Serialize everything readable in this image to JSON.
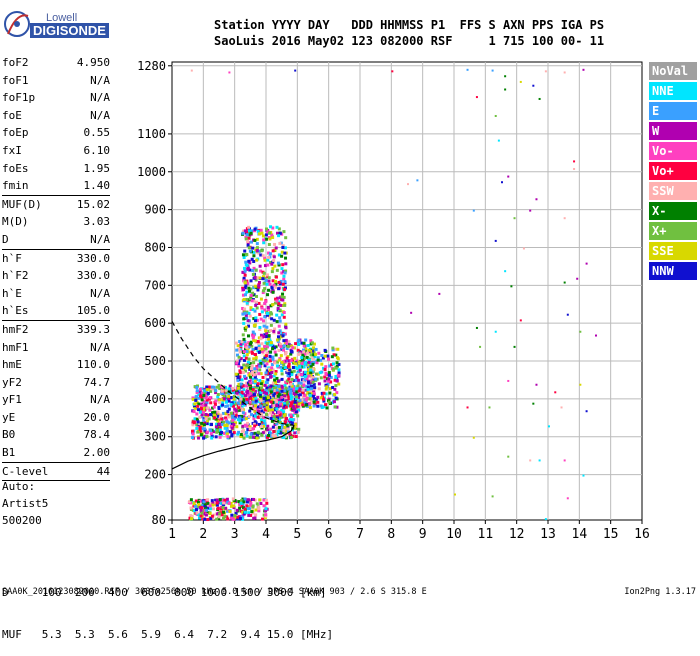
{
  "logo": {
    "top": "Lowell",
    "bottom": "DIGISONDE"
  },
  "header": {
    "line1": "Station YYYY DAY   DDD HHMMSS P1  FFS S AXN PPS IGA PS",
    "line2": "SaoLuis 2016 May02 123 082000 RSF     1 715 100 00- 11"
  },
  "params": [
    [
      [
        "foF2",
        "4.950"
      ],
      [
        "foF1",
        "N/A"
      ],
      [
        "foF1p",
        "N/A"
      ],
      [
        "foE",
        "N/A"
      ],
      [
        "foEp",
        "0.55"
      ],
      [
        "fxI",
        "6.10"
      ],
      [
        "foEs",
        "1.95"
      ],
      [
        "fmin",
        "1.40"
      ]
    ],
    [
      [
        "MUF(D)",
        "15.02"
      ],
      [
        "M(D)",
        "3.03"
      ],
      [
        "D",
        "N/A"
      ]
    ],
    [
      [
        "h`F",
        "330.0"
      ],
      [
        "h`F2",
        "330.0"
      ],
      [
        "h`E",
        "N/A"
      ],
      [
        "h`Es",
        "105.0"
      ]
    ],
    [
      [
        "hmF2",
        "339.3"
      ],
      [
        "hmF1",
        "N/A"
      ],
      [
        "hmE",
        "110.0"
      ],
      [
        "yF2",
        "74.7"
      ],
      [
        "yF1",
        "N/A"
      ],
      [
        "yE",
        "20.0"
      ],
      [
        "B0",
        "78.4"
      ],
      [
        "B1",
        "2.00"
      ]
    ],
    [
      [
        "C-level",
        "44"
      ]
    ]
  ],
  "auto": {
    "l1": "Auto:",
    "l2": "Artist5",
    "l3": "500200"
  },
  "legend": [
    {
      "label": "NoVal",
      "color": "#a0a0a0"
    },
    {
      "label": "NNE",
      "color": "#00e5ff"
    },
    {
      "label": "E",
      "color": "#3aa0ff"
    },
    {
      "label": "W",
      "color": "#b000b0"
    },
    {
      "label": "Vo-",
      "color": "#ff40c0"
    },
    {
      "label": "Vo+",
      "color": "#ff0040"
    },
    {
      "label": "SSW",
      "color": "#ffb0b0"
    },
    {
      "label": "X-",
      "color": "#008000"
    },
    {
      "label": "X+",
      "color": "#70c040"
    },
    {
      "label": "SSE",
      "color": "#d8d800"
    },
    {
      "label": "NNW",
      "color": "#1010d0"
    }
  ],
  "dmuf": {
    "d_line": "D     100  200  400  600  800 1000 1500 3000 [km]",
    "muf_line": "MUF   5.3  5.3  5.6  5.9  6.4  7.2  9.4 15.0 [MHz]"
  },
  "footer": {
    "file": "SAA0K_2016123082000.RSF / 300fx256h 50 kHz 5.0 km / DPS-4 SAA0K 903 / 2.6 S 315.8 E",
    "version": "Ion2Png 1.3.17"
  },
  "chart_data": {
    "type": "scatter",
    "xlim": [
      1,
      16
    ],
    "ylim": [
      80,
      1290
    ],
    "x_ticks": [
      1,
      2,
      3,
      4,
      5,
      6,
      7,
      8,
      9,
      10,
      11,
      12,
      13,
      14,
      15,
      16
    ],
    "y_ticks": [
      80,
      200,
      300,
      400,
      500,
      600,
      700,
      800,
      900,
      1000,
      1100,
      1280
    ],
    "grid": true,
    "series": [
      {
        "values": [
          [
            1.6,
            1270
          ],
          [
            2.8,
            1265
          ],
          [
            4.9,
            1270
          ],
          [
            8,
            1268
          ],
          [
            10.4,
            1272
          ],
          [
            11.2,
            1270
          ],
          [
            11.6,
            1255
          ],
          [
            12.1,
            1240
          ],
          [
            12.5,
            1230
          ],
          [
            12.9,
            1268
          ],
          [
            13.5,
            1265
          ],
          [
            14.1,
            1272
          ],
          [
            10.7,
            1200
          ],
          [
            11.3,
            1150
          ],
          [
            11.6,
            1220
          ],
          [
            12.7,
            1195
          ],
          [
            11.4,
            1085
          ],
          [
            13.8,
            1030
          ],
          [
            8.5,
            970
          ],
          [
            8.8,
            980
          ],
          [
            11.5,
            975
          ],
          [
            11.7,
            990
          ],
          [
            12.6,
            930
          ],
          [
            13.8,
            1010
          ],
          [
            10.6,
            900
          ],
          [
            11.9,
            880
          ],
          [
            12.4,
            900
          ],
          [
            13.5,
            880
          ],
          [
            11.3,
            820
          ],
          [
            12.2,
            800
          ],
          [
            14.2,
            760
          ],
          [
            11.6,
            740
          ],
          [
            11.8,
            700
          ],
          [
            13.5,
            710
          ],
          [
            13.9,
            720
          ],
          [
            9.5,
            680
          ],
          [
            8.6,
            630
          ],
          [
            10.7,
            590
          ],
          [
            11.3,
            580
          ],
          [
            12.1,
            610
          ],
          [
            13.6,
            625
          ],
          [
            14.0,
            580
          ],
          [
            14.5,
            570
          ],
          [
            10.8,
            540
          ],
          [
            11.9,
            540
          ],
          [
            11.7,
            450
          ],
          [
            12.6,
            440
          ],
          [
            13.2,
            420
          ],
          [
            14.0,
            440
          ],
          [
            10.4,
            380
          ],
          [
            11.1,
            380
          ],
          [
            12.5,
            390
          ],
          [
            13.4,
            380
          ],
          [
            14.2,
            370
          ],
          [
            13.0,
            330
          ],
          [
            10.6,
            300
          ],
          [
            11.7,
            250
          ],
          [
            12.4,
            240
          ],
          [
            12.7,
            240
          ],
          [
            13.5,
            240
          ],
          [
            14.1,
            200
          ],
          [
            10.0,
            150
          ],
          [
            11.2,
            145
          ],
          [
            13.6,
            140
          ],
          [
            12.9,
            85
          ]
        ]
      }
    ],
    "curve_solid": [
      [
        1,
        215
      ],
      [
        1.5,
        235
      ],
      [
        2,
        250
      ],
      [
        2.5,
        262
      ],
      [
        3,
        272
      ],
      [
        3.5,
        283
      ],
      [
        4,
        290
      ],
      [
        4.5,
        300
      ],
      [
        4.8,
        315
      ],
      [
        4.9,
        330
      ]
    ],
    "curve_dashed": [
      [
        1,
        605
      ],
      [
        1.3,
        560
      ],
      [
        1.7,
        510
      ],
      [
        2,
        480
      ],
      [
        2.4,
        450
      ],
      [
        2.8,
        420
      ],
      [
        3.2,
        395
      ],
      [
        3.6,
        370
      ],
      [
        4,
        350
      ],
      [
        4.5,
        335
      ],
      [
        4.9,
        330
      ]
    ]
  }
}
